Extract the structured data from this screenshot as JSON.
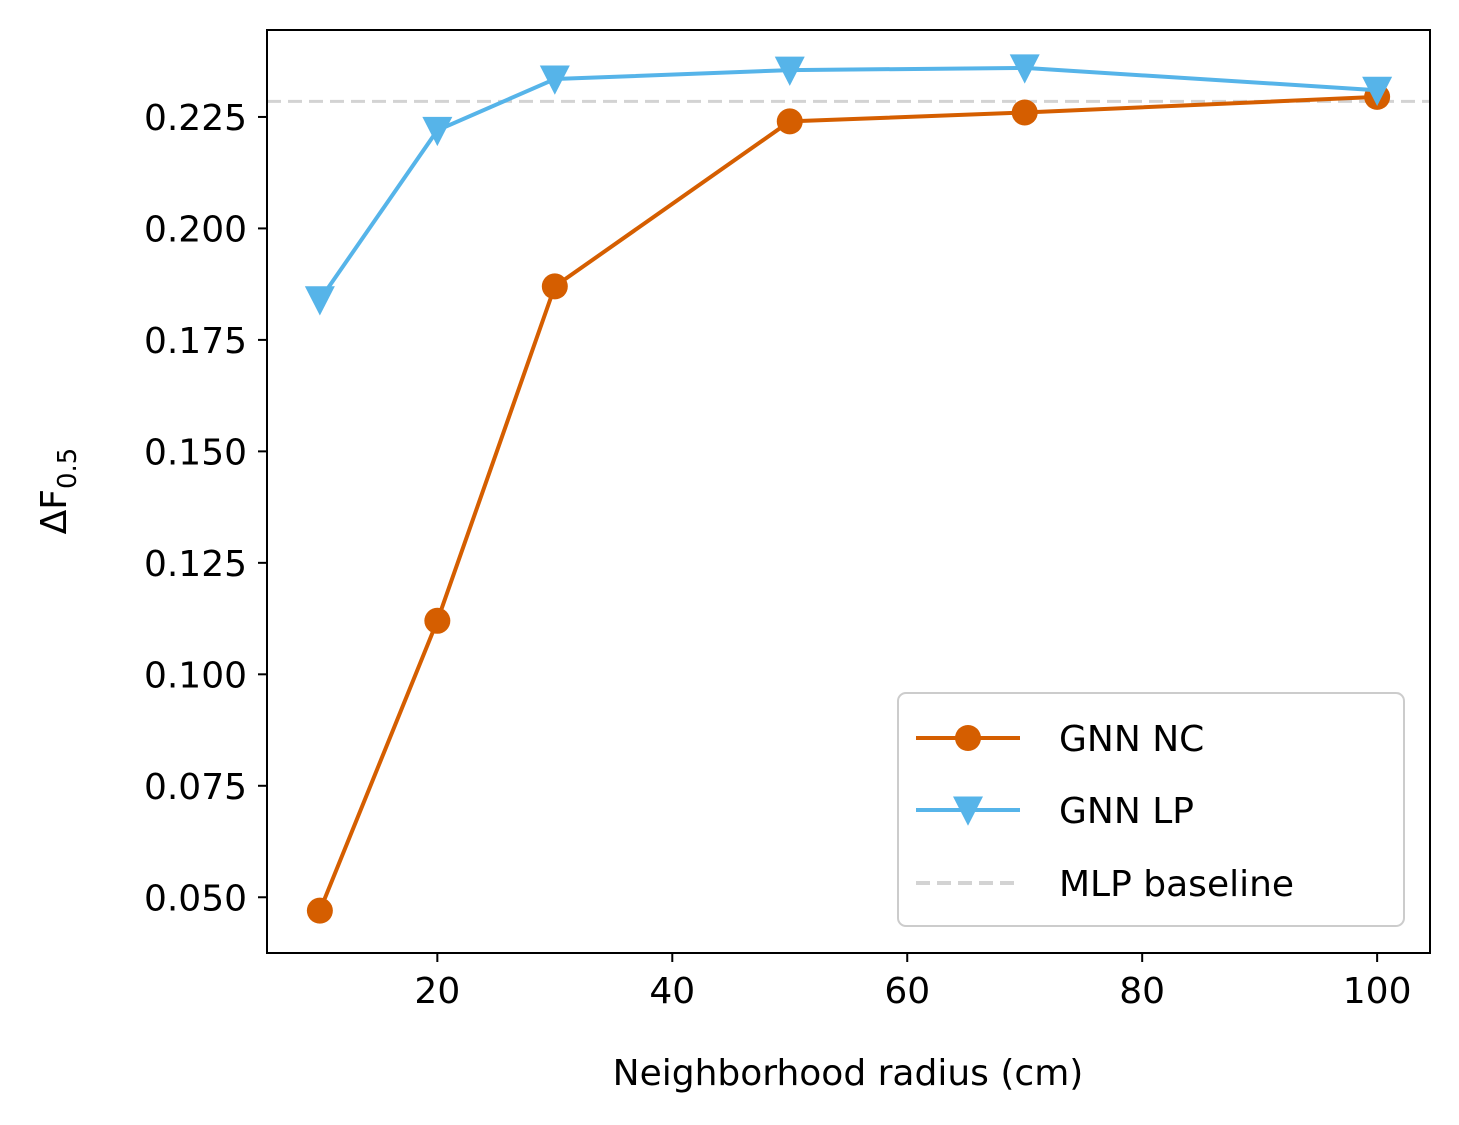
{
  "chart_data": {
    "type": "line",
    "title": "",
    "xlabel": "Neighborhood radius (cm)",
    "ylabel_main": "ΔF",
    "ylabel_sub": "0.5",
    "xlim": [
      5.5,
      104.5
    ],
    "ylim": [
      0.0375,
      0.2445
    ],
    "xticks": [
      20,
      40,
      60,
      80,
      100
    ],
    "yticks": [
      0.05,
      0.075,
      0.1,
      0.125,
      0.15,
      0.175,
      0.2,
      0.225
    ],
    "xtick_labels": [
      "20",
      "40",
      "60",
      "80",
      "100"
    ],
    "ytick_labels": [
      "0.050",
      "0.075",
      "0.100",
      "0.125",
      "0.150",
      "0.175",
      "0.200",
      "0.225"
    ],
    "grid": false,
    "legend_position": "lower-right",
    "series": [
      {
        "name": "GNN NC",
        "color": "#d55e00",
        "marker": "circle",
        "x": [
          10,
          20,
          30,
          50,
          70,
          100
        ],
        "y": [
          0.047,
          0.112,
          0.187,
          0.224,
          0.226,
          0.2295
        ]
      },
      {
        "name": "GNN LP",
        "color": "#56b4e9",
        "marker": "triangle-down",
        "x": [
          10,
          20,
          30,
          50,
          70,
          100
        ],
        "y": [
          0.184,
          0.222,
          0.2335,
          0.2355,
          0.236,
          0.231
        ]
      }
    ],
    "baseline": {
      "name": "MLP baseline",
      "color": "#d3d3d3",
      "style": "dashed",
      "y": 0.2285
    }
  }
}
